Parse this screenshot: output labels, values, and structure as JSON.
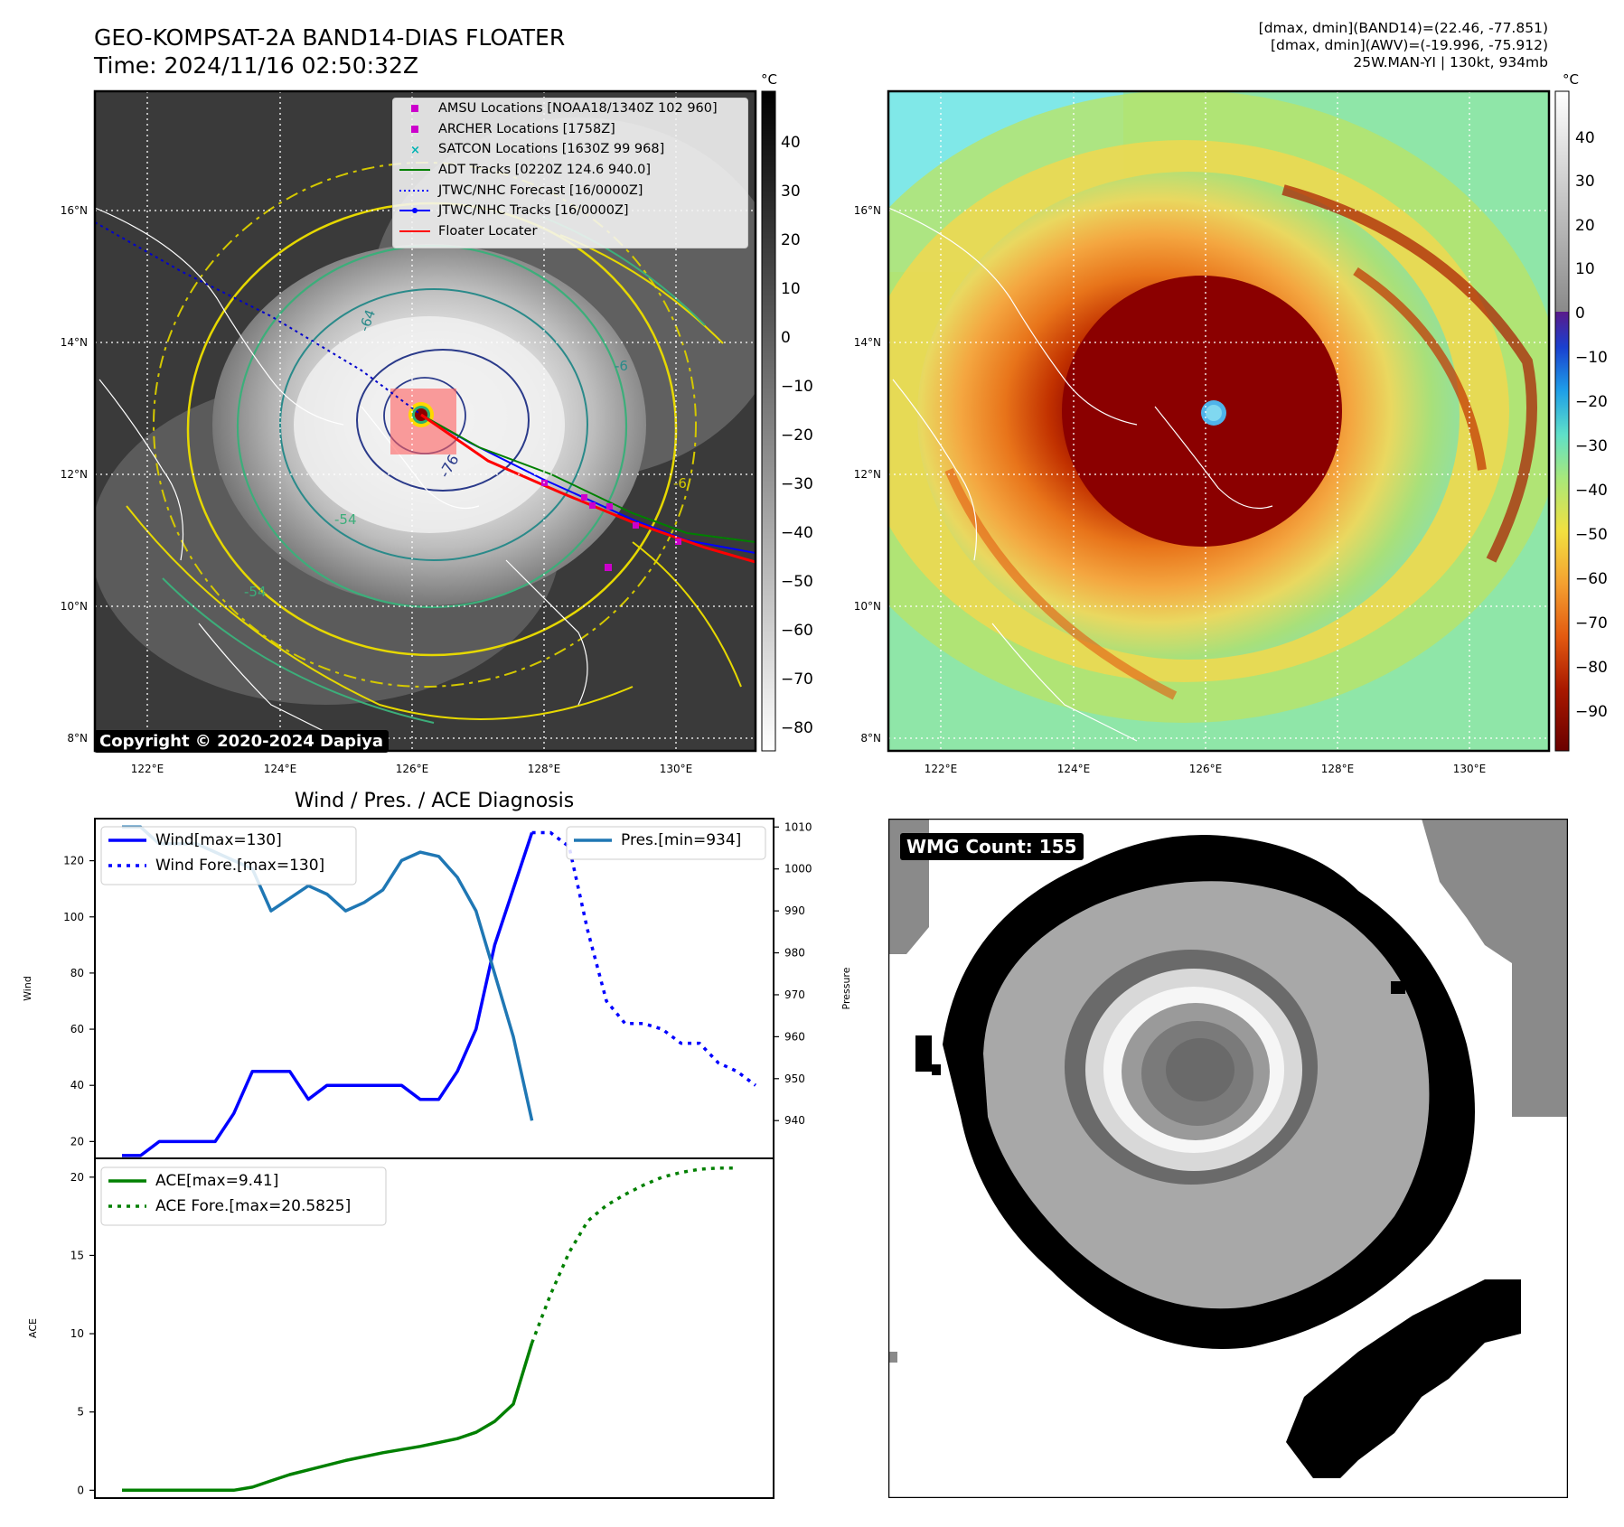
{
  "header": {
    "title_line1": "GEO-KOMPSAT-2A BAND14-DIAS FLOATER",
    "title_line2": "Time: 2024/11/16 02:50:32Z",
    "info_line1": "[dmax, dmin](BAND14)=(22.46, -77.851)",
    "info_line2": "[dmax, dmin](AWV)=(-19.996, -75.912)",
    "info_line3": "25W.MAN-YI | 130kt, 934mb"
  },
  "map": {
    "lat_labels": [
      "16°N",
      "14°N",
      "12°N",
      "10°N",
      "8°N"
    ],
    "lon_labels": [
      "122°E",
      "124°E",
      "126°E",
      "128°E",
      "130°E"
    ],
    "copyright": "Copyright © 2020-2024 Dapiya",
    "contour_labels": [
      "-64",
      "-76",
      "-54",
      "-54",
      "-6",
      "-6"
    ],
    "legend": [
      {
        "label": "AMSU Locations [NOAA18/1340Z 102 960]",
        "marker": "square",
        "color": "#cc00cc"
      },
      {
        "label": "ARCHER Locations [1758Z]",
        "marker": "square",
        "color": "#cc00cc"
      },
      {
        "label": "SATCON Locations [1630Z 99 968]",
        "marker": "x",
        "color": "#00b3b3"
      },
      {
        "label": "ADT Tracks [0220Z 124.6 940.0]",
        "marker": "line",
        "color": "#008000"
      },
      {
        "label": "JTWC/NHC Forecast [16/0000Z]",
        "marker": "dotted",
        "color": "#0000ff"
      },
      {
        "label": "JTWC/NHC Tracks [16/0000Z]",
        "marker": "line-dot",
        "color": "#0000ff"
      },
      {
        "label": "Floater Locater",
        "marker": "line",
        "color": "#ff0000"
      }
    ],
    "colorbar_gray": {
      "unit": "°C",
      "ticks": [
        "40",
        "30",
        "20",
        "10",
        "0",
        "−10",
        "−20",
        "−30",
        "−40",
        "−50",
        "−60",
        "−70",
        "−80"
      ]
    },
    "colorbar_awv": {
      "unit": "°C",
      "ticks": [
        "40",
        "30",
        "20",
        "10",
        "0",
        "−10",
        "−20",
        "−30",
        "−40",
        "−50",
        "−60",
        "−70",
        "−80",
        "−90"
      ]
    }
  },
  "chart_data": [
    {
      "type": "line",
      "title": "Wind / Pres. / ACE Diagnosis",
      "xlabel": "",
      "ylabel": "Wind",
      "ylabel_right": "Pressure",
      "ylim": [
        14,
        135
      ],
      "ylim_right": [
        931,
        1012
      ],
      "yticks": [
        20,
        40,
        60,
        80,
        100,
        120
      ],
      "yticks_right": [
        940,
        950,
        960,
        970,
        980,
        990,
        1000,
        1010
      ],
      "series": [
        {
          "name": "Wind[max=130]",
          "axis": "left",
          "color": "#0000ff",
          "style": "solid",
          "x": [
            0,
            1,
            2,
            3,
            4,
            5,
            6,
            7,
            8,
            9,
            10,
            11,
            12,
            13,
            14,
            15,
            16,
            17,
            18,
            19,
            20,
            21,
            22
          ],
          "values": [
            15,
            15,
            20,
            20,
            20,
            20,
            30,
            45,
            45,
            45,
            35,
            40,
            40,
            40,
            40,
            40,
            35,
            35,
            45,
            60,
            90,
            110,
            130
          ]
        },
        {
          "name": "Wind Fore.[max=130]",
          "axis": "left",
          "color": "#0000ff",
          "style": "dotted",
          "x": [
            22,
            23,
            24,
            25,
            26,
            27,
            28,
            29,
            30,
            31,
            32,
            33,
            34
          ],
          "values": [
            130,
            130,
            125,
            95,
            70,
            62,
            62,
            60,
            55,
            55,
            48,
            45,
            40
          ]
        },
        {
          "name": "Pres.[min=934]",
          "axis": "right",
          "color": "#1f77b4",
          "style": "solid",
          "x": [
            0,
            1,
            2,
            3,
            4,
            5,
            6,
            7,
            8,
            9,
            10,
            11,
            12,
            13,
            14,
            15,
            16,
            17,
            18,
            19,
            20,
            21,
            22
          ],
          "values": [
            1010,
            1010,
            1006,
            1006,
            1006,
            1004,
            1002,
            1000,
            990,
            993,
            996,
            994,
            990,
            992,
            995,
            1002,
            1004,
            1003,
            998,
            990,
            975,
            960,
            940
          ]
        }
      ]
    },
    {
      "type": "line",
      "title": "",
      "xlabel": "",
      "ylabel": "ACE",
      "ylim": [
        -0.5,
        21.2
      ],
      "yticks": [
        0,
        5,
        10,
        15,
        20
      ],
      "series": [
        {
          "name": "ACE[max=9.41]",
          "color": "#008000",
          "style": "solid",
          "x": [
            0,
            2,
            4,
            6,
            7,
            8,
            9,
            10,
            12,
            14,
            16,
            18,
            19,
            20,
            21,
            22
          ],
          "values": [
            0,
            0,
            0,
            0,
            0.2,
            0.6,
            1.0,
            1.3,
            1.9,
            2.4,
            2.8,
            3.3,
            3.7,
            4.4,
            5.5,
            9.41
          ]
        },
        {
          "name": "ACE Fore.[max=20.5825]",
          "color": "#008000",
          "style": "dotted",
          "x": [
            22,
            23,
            24,
            25,
            26,
            27,
            28,
            29,
            30,
            31,
            32,
            33
          ],
          "values": [
            9.41,
            12.5,
            15.2,
            17.2,
            18.2,
            18.9,
            19.5,
            20.0,
            20.3,
            20.5,
            20.58,
            20.58
          ]
        }
      ]
    }
  ],
  "wmg": {
    "label": "WMG Count: 155"
  }
}
